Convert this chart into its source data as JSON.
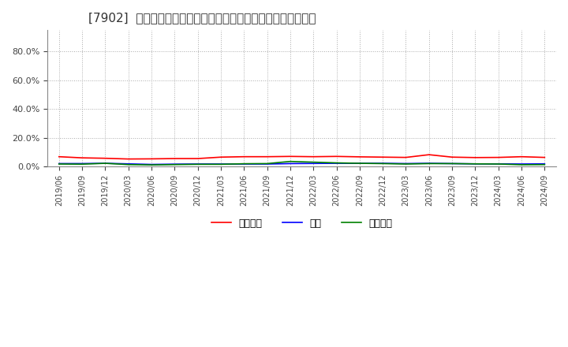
{
  "title": "[7902]  売上債権、在庫、買入債務の総資産に対する比率の推移",
  "dates": [
    "2019/06",
    "2019/09",
    "2019/12",
    "2020/03",
    "2020/06",
    "2020/09",
    "2020/12",
    "2021/03",
    "2021/06",
    "2021/09",
    "2021/12",
    "2022/03",
    "2022/06",
    "2022/09",
    "2022/12",
    "2023/03",
    "2023/06",
    "2023/09",
    "2023/12",
    "2024/03",
    "2024/06",
    "2024/09"
  ],
  "receivables": [
    0.068,
    0.06,
    0.057,
    0.052,
    0.053,
    0.055,
    0.055,
    0.065,
    0.068,
    0.068,
    0.07,
    0.068,
    0.07,
    0.067,
    0.065,
    0.063,
    0.082,
    0.065,
    0.062,
    0.063,
    0.068,
    0.063
  ],
  "inventory": [
    0.02,
    0.02,
    0.022,
    0.018,
    0.014,
    0.016,
    0.017,
    0.017,
    0.017,
    0.017,
    0.02,
    0.021,
    0.022,
    0.022,
    0.022,
    0.02,
    0.022,
    0.02,
    0.018,
    0.018,
    0.017,
    0.018
  ],
  "payables": [
    0.017,
    0.016,
    0.022,
    0.013,
    0.011,
    0.013,
    0.015,
    0.015,
    0.019,
    0.02,
    0.035,
    0.03,
    0.025,
    0.022,
    0.02,
    0.017,
    0.02,
    0.02,
    0.018,
    0.017,
    0.012,
    0.013
  ],
  "receivables_color": "#FF0000",
  "inventory_color": "#0000FF",
  "payables_color": "#008000",
  "legend_labels": [
    "売上債権",
    "在庫",
    "買入債務"
  ],
  "yticks": [
    0.0,
    0.2,
    0.4,
    0.6,
    0.8
  ],
  "ymax": 0.95,
  "background_color": "#FFFFFF",
  "grid_color": "#AAAAAA",
  "title_fontsize": 11
}
